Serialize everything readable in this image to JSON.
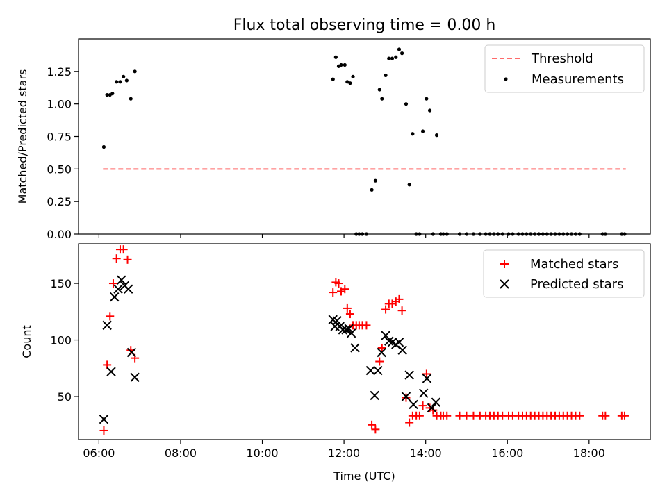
{
  "figure": {
    "title": "Flux total observing time = 0.00 h",
    "xlabel": "Time (UTC)",
    "x_ticks": [
      "06:00",
      "08:00",
      "10:00",
      "12:00",
      "14:00",
      "16:00",
      "18:00"
    ],
    "x_tick_hours": [
      6,
      8,
      10,
      12,
      14,
      16,
      18
    ],
    "xlim_hours": [
      5.5,
      19.5
    ]
  },
  "chart_data": [
    {
      "type": "scatter",
      "panel": "top",
      "title": "Flux total observing time = 0.00 h",
      "xlabel": "",
      "ylabel": "Matched/Predicted stars",
      "ylim": [
        0,
        1.5
      ],
      "y_ticks": [
        0.0,
        0.25,
        0.5,
        0.75,
        1.0,
        1.25
      ],
      "y_tick_labels": [
        "0.00",
        "0.25",
        "0.50",
        "0.75",
        "1.00",
        "1.25"
      ],
      "legend_position": "upper right",
      "series": [
        {
          "name": "Threshold",
          "kind": "line",
          "style": "dashed",
          "color": "#ff6b6b",
          "x": [
            6.1,
            18.9
          ],
          "y": [
            0.5,
            0.5
          ]
        },
        {
          "name": "Measurements",
          "kind": "scatter",
          "marker": "dot",
          "color": "#000000",
          "x": [
            6.12,
            6.2,
            6.27,
            6.33,
            6.43,
            6.52,
            6.6,
            6.68,
            6.78,
            6.88,
            11.73,
            11.8,
            11.87,
            11.93,
            12.02,
            12.08,
            12.15,
            12.22,
            12.3,
            12.37,
            12.45,
            12.55,
            12.68,
            12.77,
            12.87,
            12.93,
            13.02,
            13.1,
            13.18,
            13.27,
            13.35,
            13.42,
            13.52,
            13.6,
            13.68,
            13.77,
            13.85,
            13.93,
            14.02,
            14.1,
            14.18,
            14.27,
            14.37,
            14.43,
            14.52,
            14.83,
            15.0,
            15.17,
            15.33,
            15.47,
            15.57,
            15.67,
            15.77,
            15.88,
            16.03,
            16.13,
            16.27,
            16.37,
            16.47,
            16.57,
            16.67,
            16.77,
            16.87,
            16.97,
            17.07,
            17.17,
            17.27,
            17.37,
            17.47,
            17.57,
            17.67,
            17.77,
            18.33,
            18.4,
            18.8,
            18.87
          ],
          "y": [
            0.67,
            1.07,
            1.07,
            1.08,
            1.17,
            1.17,
            1.21,
            1.18,
            1.04,
            1.25,
            1.19,
            1.36,
            1.29,
            1.3,
            1.3,
            1.17,
            1.16,
            1.21,
            0.0,
            0.0,
            0.0,
            0.0,
            0.34,
            0.41,
            1.11,
            1.04,
            1.22,
            1.35,
            1.35,
            1.36,
            1.42,
            1.39,
            1.0,
            0.38,
            0.77,
            0.0,
            0.0,
            0.79,
            1.04,
            0.95,
            0.0,
            0.76,
            0.0,
            0.0,
            0.0,
            0.0,
            0.0,
            0.0,
            0.0,
            0.0,
            0.0,
            0.0,
            0.0,
            0.0,
            0.0,
            0.0,
            0.0,
            0.0,
            0.0,
            0.0,
            0.0,
            0.0,
            0.0,
            0.0,
            0.0,
            0.0,
            0.0,
            0.0,
            0.0,
            0.0,
            0.0,
            0.0,
            0.0,
            0.0,
            0.0,
            0.0
          ]
        }
      ]
    },
    {
      "type": "scatter",
      "panel": "bottom",
      "title": "",
      "xlabel": "Time (UTC)",
      "ylabel": "Count",
      "ylim": [
        12,
        185
      ],
      "y_ticks": [
        50,
        100,
        150
      ],
      "y_tick_labels": [
        "50",
        "100",
        "150"
      ],
      "legend_position": "upper right",
      "series": [
        {
          "name": "Matched stars",
          "kind": "scatter",
          "marker": "plus",
          "color": "#ff0000",
          "x": [
            6.12,
            6.2,
            6.27,
            6.35,
            6.43,
            6.52,
            6.6,
            6.7,
            6.78,
            6.88,
            11.73,
            11.8,
            11.87,
            11.93,
            12.02,
            12.08,
            12.15,
            12.22,
            12.3,
            12.37,
            12.45,
            12.55,
            12.68,
            12.77,
            12.87,
            12.93,
            13.02,
            13.1,
            13.18,
            13.27,
            13.35,
            13.42,
            13.52,
            13.6,
            13.68,
            13.77,
            13.85,
            13.93,
            14.02,
            14.1,
            14.18,
            14.27,
            14.37,
            14.43,
            14.52,
            14.83,
            15.0,
            15.17,
            15.33,
            15.47,
            15.57,
            15.67,
            15.77,
            15.88,
            16.03,
            16.13,
            16.27,
            16.37,
            16.47,
            16.57,
            16.67,
            16.77,
            16.87,
            16.97,
            17.07,
            17.17,
            17.27,
            17.37,
            17.47,
            17.57,
            17.67,
            17.77,
            18.33,
            18.4,
            18.8,
            18.87
          ],
          "y": [
            20,
            78,
            121,
            150,
            172,
            180,
            180,
            171,
            91,
            84,
            142,
            151,
            150,
            143,
            145,
            128,
            123,
            113,
            113,
            113,
            113,
            113,
            25,
            21,
            81,
            93,
            127,
            132,
            132,
            134,
            136,
            126,
            49,
            27,
            33,
            33,
            33,
            42,
            70,
            40,
            38,
            33,
            33,
            33,
            33,
            33,
            33,
            33,
            33,
            33,
            33,
            33,
            33,
            33,
            33,
            33,
            33,
            33,
            33,
            33,
            33,
            33,
            33,
            33,
            33,
            33,
            33,
            33,
            33,
            33,
            33,
            33,
            33,
            33,
            33,
            33
          ]
        },
        {
          "name": "Predicted stars",
          "kind": "scatter",
          "marker": "x",
          "color": "#000000",
          "x": [
            6.12,
            6.2,
            6.3,
            6.38,
            6.47,
            6.55,
            6.63,
            6.72,
            6.8,
            6.88,
            11.73,
            11.78,
            11.83,
            11.9,
            11.97,
            12.05,
            12.12,
            12.18,
            12.27,
            12.65,
            12.75,
            12.83,
            12.92,
            13.02,
            13.1,
            13.18,
            13.27,
            13.35,
            13.43,
            13.52,
            13.6,
            13.7,
            13.95,
            14.03,
            14.15,
            14.25
          ],
          "y": [
            30,
            113,
            72,
            138,
            145,
            153,
            148,
            145,
            89,
            67,
            118,
            112,
            117,
            112,
            109,
            109,
            110,
            106,
            93,
            73,
            51,
            73,
            89,
            104,
            99,
            98,
            96,
            98,
            91,
            50,
            69,
            43,
            53,
            66,
            40,
            45
          ]
        }
      ]
    }
  ]
}
